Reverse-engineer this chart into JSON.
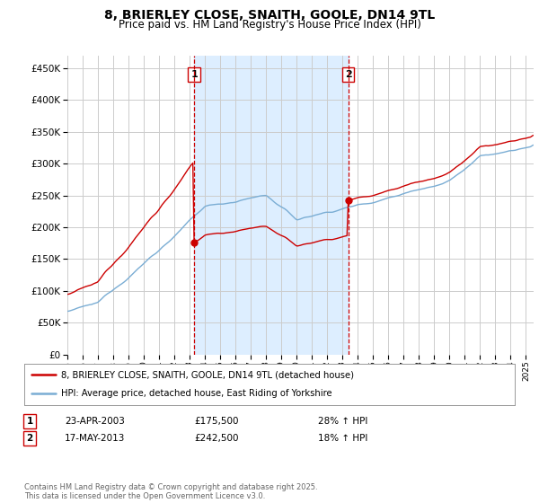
{
  "title": "8, BRIERLEY CLOSE, SNAITH, GOOLE, DN14 9TL",
  "subtitle": "Price paid vs. HM Land Registry's House Price Index (HPI)",
  "legend_line1": "8, BRIERLEY CLOSE, SNAITH, GOOLE, DN14 9TL (detached house)",
  "legend_line2": "HPI: Average price, detached house, East Riding of Yorkshire",
  "footer": "Contains HM Land Registry data © Crown copyright and database right 2025.\nThis data is licensed under the Open Government Licence v3.0.",
  "purchase1_date": "23-APR-2003",
  "purchase1_price": 175500,
  "purchase1_label": "£175,500",
  "purchase1_hpi": "28% ↑ HPI",
  "purchase2_date": "17-MAY-2013",
  "purchase2_price": 242500,
  "purchase2_label": "£242,500",
  "purchase2_hpi": "18% ↑ HPI",
  "line_color_red": "#cc0000",
  "line_color_blue": "#7aadd4",
  "shade_color": "#ddeeff",
  "vline_color": "#cc0000",
  "background_color": "#ffffff",
  "grid_color": "#cccccc",
  "ylim": [
    0,
    470000
  ],
  "yticks": [
    0,
    50000,
    100000,
    150000,
    200000,
    250000,
    300000,
    350000,
    400000,
    450000
  ],
  "start_year": 1995,
  "end_year": 2025
}
